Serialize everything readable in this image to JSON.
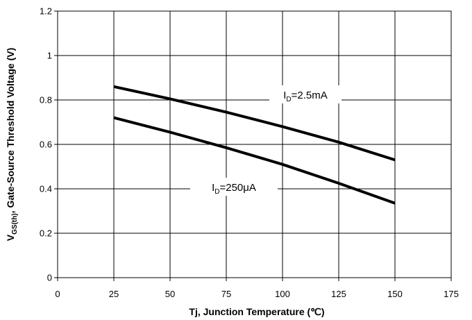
{
  "chart_data": {
    "type": "line",
    "xlabel": "Tj, Junction Temperature (℃)",
    "ylabel": {
      "prefix": "V",
      "subscript": "GS(th)",
      "suffix": ", Gate-Source Threshold Voltage (V)"
    },
    "xlim": [
      0,
      175
    ],
    "ylim": [
      0,
      1.2
    ],
    "xticks": [
      0,
      25,
      50,
      75,
      100,
      125,
      150,
      175
    ],
    "yticks": [
      0,
      0.2,
      0.4,
      0.6,
      0.8,
      1.0,
      1.2
    ],
    "xtick_labels": [
      "0",
      "25",
      "50",
      "75",
      "100",
      "125",
      "150",
      "175"
    ],
    "ytick_labels": [
      "0",
      "0.2",
      "0.4",
      "0.6",
      "0.8",
      "1",
      "1.2"
    ],
    "grid": true,
    "series": [
      {
        "label_parts": {
          "main": "I",
          "sub": "D",
          "rest": "=2.5mA"
        },
        "x": [
          25,
          50,
          75,
          100,
          125,
          150
        ],
        "y": [
          0.86,
          0.805,
          0.745,
          0.68,
          0.61,
          0.53
        ],
        "color": "#000000"
      },
      {
        "label_parts": {
          "main": "I",
          "sub": "D",
          "rest": "=250μA"
        },
        "x": [
          25,
          50,
          75,
          100,
          125,
          150
        ],
        "y": [
          0.72,
          0.655,
          0.585,
          0.51,
          0.425,
          0.335
        ],
        "color": "#000000"
      }
    ]
  }
}
